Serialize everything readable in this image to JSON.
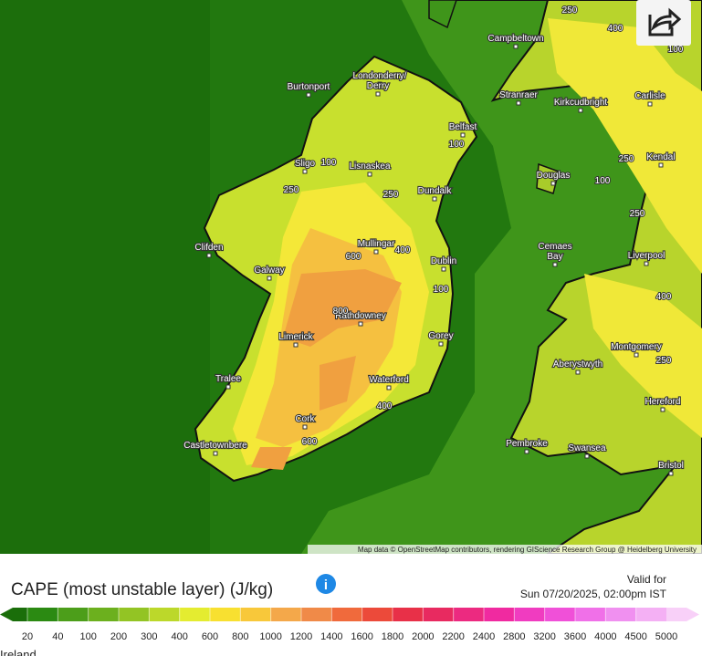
{
  "map": {
    "places": [
      "Campbeltown",
      "Stranraer",
      "Kirkcudbright",
      "Carlisle",
      "Burtonport",
      "Londonderry/",
      "Derry",
      "Belfast",
      "Sligo",
      "Lisnaskea",
      "Douglas",
      "Kendal",
      "Dundalk",
      "Clifden",
      "Mullingar",
      "Cemaes",
      "Bay",
      "Liverpool",
      "Galway",
      "Dublin",
      "Rathdowney",
      "Limerick",
      "Gorey",
      "Montgomery",
      "Aberystwyth",
      "Tralee",
      "Waterford",
      "Hereford",
      "Cork",
      "Castletownbere",
      "Pembroke",
      "Swansea",
      "Bristol"
    ],
    "contour_labels": [
      "250",
      "400",
      "100",
      "100",
      "250",
      "250",
      "100",
      "250",
      "100",
      "250",
      "400",
      "600",
      "100",
      "400",
      "800",
      "250",
      "400",
      "600"
    ],
    "attribution": "Map data © OpenStreetMap contributors, rendering GIScience Research Group @ Heidelberg University"
  },
  "panel": {
    "title": "CAPE (most unstable layer) (J/kg)",
    "valid_label": "Valid for",
    "valid_time": "Sun 07/20/2025, 02:00pm IST",
    "region": "Ireland"
  },
  "legend": {
    "labels": [
      "20",
      "40",
      "100",
      "200",
      "300",
      "400",
      "600",
      "800",
      "1000",
      "1200",
      "1400",
      "1600",
      "1800",
      "2000",
      "2200",
      "2400",
      "2800",
      "3200",
      "3600",
      "4000",
      "4500",
      "5000"
    ],
    "colors": [
      "#1a6e0a",
      "#2b8a12",
      "#4c9e1a",
      "#6cb01e",
      "#93c424",
      "#bcd82a",
      "#e4ec30",
      "#f8e030",
      "#f8c83a",
      "#f4a84a",
      "#f08a48",
      "#f06a3c",
      "#ec4a3a",
      "#e83048",
      "#e82a60",
      "#ec2a80",
      "#f02aa0",
      "#f03cc0",
      "#f050d8",
      "#f070e8",
      "#f090f0",
      "#f4b0f4",
      "#f8d0f8"
    ]
  }
}
